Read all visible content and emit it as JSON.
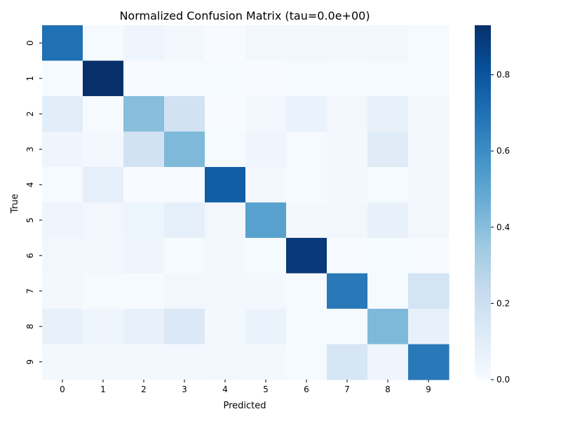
{
  "chart_data": {
    "type": "heatmap",
    "title": "Normalized Confusion Matrix (tau=0.0e+00)",
    "xlabel": "Predicted",
    "ylabel": "True",
    "x_categories": [
      "0",
      "1",
      "2",
      "3",
      "4",
      "5",
      "6",
      "7",
      "8",
      "9"
    ],
    "y_categories": [
      "0",
      "1",
      "2",
      "3",
      "4",
      "5",
      "6",
      "7",
      "8",
      "9"
    ],
    "values": [
      [
        0.7,
        0.01,
        0.04,
        0.02,
        0.0,
        0.03,
        0.03,
        0.02,
        0.03,
        0.01
      ],
      [
        0.01,
        0.93,
        0.0,
        0.01,
        0.01,
        0.0,
        0.01,
        0.01,
        0.01,
        0.01
      ],
      [
        0.1,
        0.01,
        0.4,
        0.18,
        0.0,
        0.02,
        0.06,
        0.03,
        0.07,
        0.03
      ],
      [
        0.04,
        0.02,
        0.18,
        0.42,
        0.01,
        0.04,
        0.01,
        0.02,
        0.11,
        0.02
      ],
      [
        0.01,
        0.09,
        0.0,
        0.0,
        0.77,
        0.02,
        0.01,
        0.02,
        0.01,
        0.03
      ],
      [
        0.04,
        0.03,
        0.05,
        0.09,
        0.03,
        0.52,
        0.02,
        0.03,
        0.07,
        0.03
      ],
      [
        0.03,
        0.03,
        0.04,
        0.01,
        0.02,
        0.01,
        0.9,
        0.0,
        0.01,
        0.0
      ],
      [
        0.02,
        0.01,
        0.01,
        0.03,
        0.03,
        0.02,
        0.01,
        0.67,
        0.01,
        0.17
      ],
      [
        0.07,
        0.04,
        0.07,
        0.13,
        0.02,
        0.06,
        0.01,
        0.01,
        0.42,
        0.07
      ],
      [
        0.02,
        0.02,
        0.02,
        0.02,
        0.03,
        0.02,
        0.01,
        0.15,
        0.04,
        0.67
      ]
    ],
    "vmin": 0.0,
    "vmax": 0.93,
    "colormap": "Blues",
    "colorbar_ticks": [
      0.0,
      0.2,
      0.4,
      0.6,
      0.8
    ],
    "colorbar_tick_labels": [
      "0.0",
      "0.2",
      "0.4",
      "0.6",
      "0.8"
    ],
    "grid": false
  }
}
